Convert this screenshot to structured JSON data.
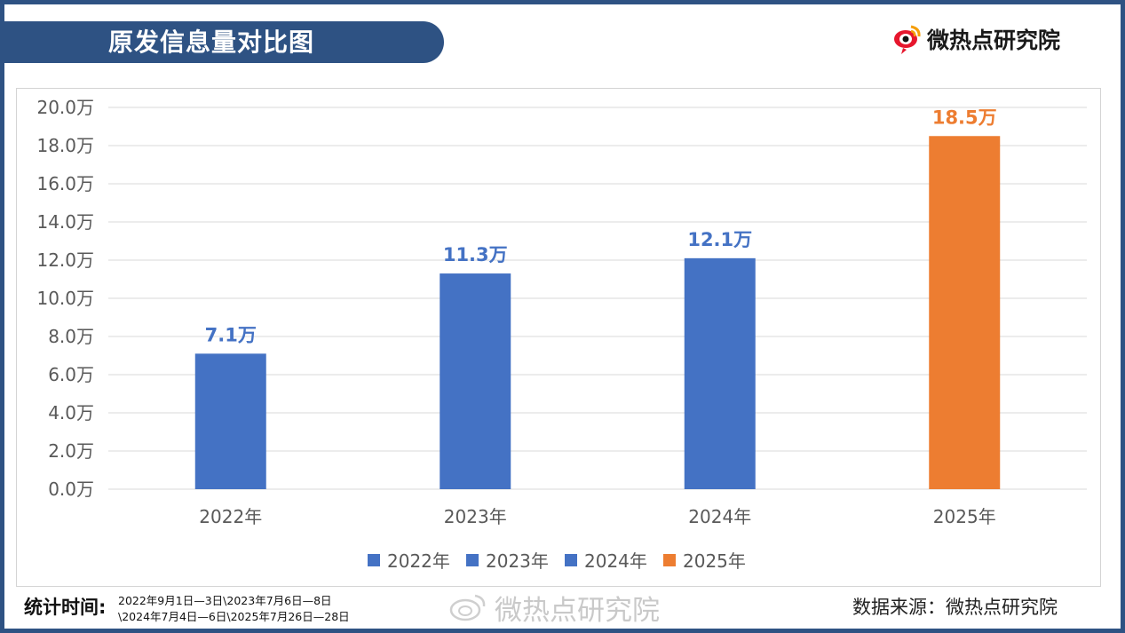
{
  "header": {
    "title": "原发信息量对比图"
  },
  "brand": {
    "name": "微热点研究院",
    "logo_icon": "weibo-eye-icon"
  },
  "colors": {
    "frame": "#2e5283",
    "bar_blue": "#4472c4",
    "bar_orange": "#ed7d31",
    "label_text": "#595959",
    "grid": "#d9d9d9"
  },
  "chart_data": {
    "type": "bar",
    "title": "原发信息量对比图",
    "categories": [
      "2022年",
      "2023年",
      "2024年",
      "2025年"
    ],
    "values": [
      7.1,
      11.3,
      12.1,
      18.5
    ],
    "data_labels": [
      "7.1万",
      "11.3万",
      "12.1万",
      "18.5万"
    ],
    "bar_colors": [
      "#4472c4",
      "#4472c4",
      "#4472c4",
      "#ed7d31"
    ],
    "y_ticks": [
      0,
      2,
      4,
      6,
      8,
      10,
      12,
      14,
      16,
      18,
      20
    ],
    "y_tick_labels": [
      "0.0万",
      "2.0万",
      "4.0万",
      "6.0万",
      "8.0万",
      "10.0万",
      "12.0万",
      "14.0万",
      "16.0万",
      "18.0万",
      "20.0万"
    ],
    "ylim": [
      0,
      20
    ],
    "xlabel": "",
    "ylabel": "",
    "grid": true,
    "legend_position": "bottom",
    "legend": [
      {
        "name": "2022年",
        "color": "#4472c4"
      },
      {
        "name": "2023年",
        "color": "#4472c4"
      },
      {
        "name": "2024年",
        "color": "#4472c4"
      },
      {
        "name": "2025年",
        "color": "#ed7d31"
      }
    ]
  },
  "footer": {
    "stat_time_label": "统计时间:",
    "stat_time_line1": "2022年9月1日—3日\\2023年7月6日—8日",
    "stat_time_line2": "\\2024年7月4日—6日\\2025年7月26日—28日",
    "source": "数据来源：微热点研究院",
    "watermark": "微热点研究院"
  }
}
